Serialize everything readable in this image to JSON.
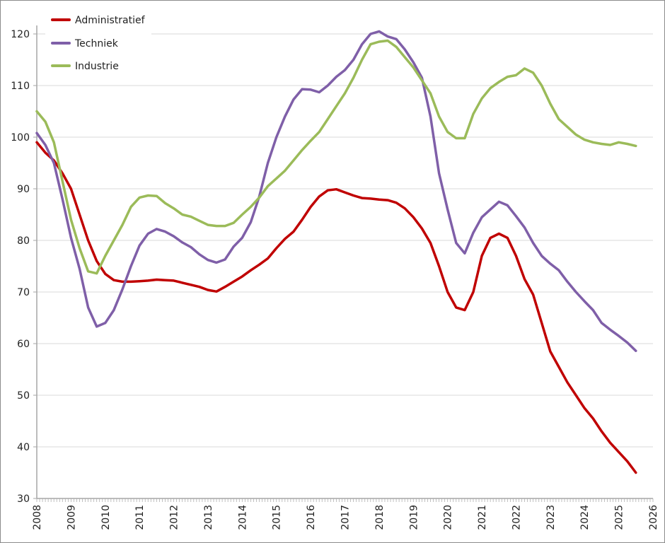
{
  "chart_data": {
    "type": "line",
    "title": "",
    "xlabel": "",
    "ylabel": "",
    "xlim": [
      2008,
      2026
    ],
    "ylim": [
      30,
      120
    ],
    "y_ticks": [
      "30",
      "40",
      "50",
      "60",
      "70",
      "80",
      "90",
      "100",
      "110",
      "120"
    ],
    "x_ticks": [
      "2008",
      "2009",
      "2010",
      "2011",
      "2012",
      "2013",
      "2014",
      "2015",
      "2016",
      "2017",
      "2018",
      "2019",
      "2020",
      "2021",
      "2022",
      "2023",
      "2024",
      "2025",
      "2026"
    ],
    "grid": "horizontal",
    "legend_position": "top-left",
    "x": [
      2008,
      2008.25,
      2008.5,
      2008.75,
      2009,
      2009.25,
      2009.5,
      2009.75,
      2010,
      2010.25,
      2010.5,
      2010.75,
      2011,
      2011.25,
      2011.5,
      2011.75,
      2012,
      2012.25,
      2012.5,
      2012.75,
      2013,
      2013.25,
      2013.5,
      2013.75,
      2014,
      2014.25,
      2014.5,
      2014.75,
      2015,
      2015.25,
      2015.5,
      2015.75,
      2016,
      2016.25,
      2016.5,
      2016.75,
      2017,
      2017.25,
      2017.5,
      2017.75,
      2018,
      2018.25,
      2018.5,
      2018.75,
      2019,
      2019.25,
      2019.5,
      2019.75,
      2020,
      2020.25,
      2020.5,
      2020.75,
      2021,
      2021.25,
      2021.5,
      2021.75,
      2022,
      2022.25,
      2022.5,
      2022.75,
      2023,
      2023.25,
      2023.5,
      2023.75,
      2024,
      2024.25,
      2024.5,
      2024.75,
      2025,
      2025.25,
      2025.5
    ],
    "series": [
      {
        "name": "Administratief",
        "color": "#c00000",
        "values": [
          99,
          97,
          95.5,
          93,
          90,
          85,
          80,
          76,
          73.5,
          72.3,
          72,
          72,
          72.1,
          72.2,
          72.4,
          72.3,
          72.2,
          71.8,
          71.4,
          71,
          70.4,
          70.1,
          71,
          72,
          73,
          74.2,
          75.3,
          76.5,
          78.5,
          80.3,
          81.7,
          84,
          86.5,
          88.5,
          89.7,
          89.9,
          89.3,
          88.7,
          88.2,
          88.1,
          87.9,
          87.8,
          87.3,
          86.2,
          84.5,
          82.3,
          79.5,
          75,
          70,
          67,
          66.5,
          70,
          77,
          80.5,
          81.3,
          80.5,
          77,
          72.5,
          69.5,
          64,
          58.5,
          55.5,
          52.5,
          50,
          47.5,
          45.5,
          43,
          40.8,
          39,
          37.2,
          35
        ]
      },
      {
        "name": "Techniek",
        "color": "#7f5fa8",
        "values": [
          100.8,
          98.5,
          95,
          88,
          80.5,
          74.5,
          67,
          63.3,
          64,
          66.5,
          70.5,
          75,
          79,
          81.3,
          82.2,
          81.7,
          80.8,
          79.6,
          78.7,
          77.3,
          76.2,
          75.7,
          76.3,
          78.8,
          80.5,
          83.5,
          88.5,
          95,
          100,
          104,
          107.3,
          109.3,
          109.2,
          108.7,
          110,
          111.7,
          113,
          115,
          118,
          120,
          120.5,
          119.5,
          119,
          117,
          114.5,
          111.5,
          104,
          93,
          86,
          79.5,
          77.5,
          81.5,
          84.5,
          86,
          87.5,
          86.8,
          84.7,
          82.5,
          79.5,
          77,
          75.5,
          74.2,
          72,
          70,
          68.2,
          66.5,
          64,
          62.7,
          61.5,
          60.2,
          58.6
        ]
      },
      {
        "name": "Industrie",
        "color": "#9bbb59",
        "values": [
          105,
          103,
          99,
          91.5,
          84,
          78.5,
          74,
          73.6,
          77,
          80,
          83,
          86.5,
          88.3,
          88.7,
          88.6,
          87.2,
          86.2,
          85,
          84.6,
          83.8,
          83,
          82.8,
          82.8,
          83.4,
          85,
          86.5,
          88.3,
          90.5,
          92,
          93.5,
          95.5,
          97.5,
          99.3,
          101,
          103.5,
          106,
          108.5,
          111.5,
          115,
          118,
          118.5,
          118.7,
          117.5,
          115.5,
          113.5,
          111,
          108.5,
          104,
          101,
          99.8,
          99.8,
          104.5,
          107.5,
          109.5,
          110.7,
          111.7,
          112,
          113.3,
          112.5,
          110,
          106.5,
          103.5,
          102,
          100.5,
          99.5,
          99,
          98.7,
          98.5,
          99,
          98.7,
          98.3
        ]
      }
    ]
  }
}
